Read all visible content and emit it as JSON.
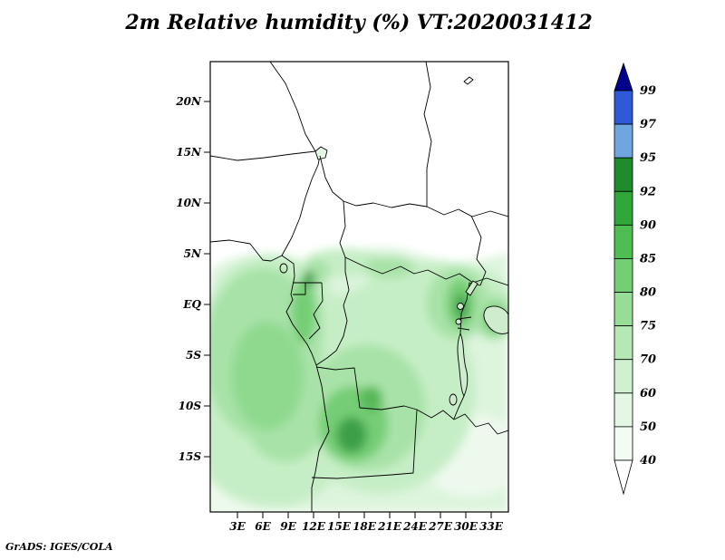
{
  "title": "2m Relative humidity (%) VT:2020031412",
  "credit": "GrADS: IGES/COLA",
  "map": {
    "y_ticks": [
      "20N",
      "15N",
      "10N",
      "5N",
      "EQ",
      "5S",
      "10S",
      "15S"
    ],
    "x_ticks": [
      "3E",
      "6E",
      "9E",
      "12E",
      "15E",
      "18E",
      "21E",
      "24E",
      "27E",
      "30E",
      "33E"
    ]
  },
  "colorbar": {
    "tick_labels": [
      "99",
      "97",
      "95",
      "92",
      "90",
      "85",
      "80",
      "75",
      "70",
      "60",
      "50",
      "40"
    ],
    "colors": [
      "#00008b",
      "#2e59d9",
      "#6fa6e0",
      "#208b2c",
      "#2fa73a",
      "#4fbe52",
      "#74ce74",
      "#97dc97",
      "#b4e8b4",
      "#cff1cf",
      "#e4f7e4",
      "#f3fbf3",
      "#ffffff"
    ]
  },
  "chart_data": {
    "type": "heatmap",
    "title": "2m Relative humidity (%) VT:2020031412",
    "variable": "2m relative humidity",
    "units": "%",
    "valid_time_label": "VT:2020031412",
    "x_ticks": [
      "3E",
      "6E",
      "9E",
      "12E",
      "15E",
      "18E",
      "21E",
      "24E",
      "27E",
      "30E",
      "33E"
    ],
    "y_ticks": [
      "20N",
      "15N",
      "10N",
      "5N",
      "EQ",
      "5S",
      "10S",
      "15S"
    ],
    "lon_range_deg_east": [
      0,
      35
    ],
    "lat_range_deg": [
      -20.4,
      23.9
    ],
    "levels": [
      40,
      50,
      60,
      70,
      75,
      80,
      85,
      90,
      92,
      95,
      97,
      99
    ],
    "palette_top_to_bottom": [
      "#00008b",
      "#2e59d9",
      "#6fa6e0",
      "#208b2c",
      "#2fa73a",
      "#4fbe52",
      "#74ce74",
      "#97dc97",
      "#b4e8b4",
      "#cff1cf",
      "#e4f7e4",
      "#f3fbf3",
      "#ffffff"
    ],
    "legend_position": "right",
    "grid": false,
    "approx_grid": {
      "lons_deg_east": [
        3,
        6,
        9,
        12,
        15,
        18,
        21,
        24,
        27,
        30,
        33
      ],
      "lats": [
        "20N",
        "15N",
        "10N",
        "5N",
        "EQ",
        "5S",
        "10S",
        "15S"
      ],
      "values_percent": [
        [
          35,
          35,
          35,
          35,
          35,
          35,
          35,
          35,
          35,
          35,
          35
        ],
        [
          38,
          38,
          38,
          38,
          38,
          38,
          38,
          38,
          38,
          38,
          38
        ],
        [
          42,
          42,
          45,
          45,
          48,
          50,
          50,
          48,
          45,
          45,
          42
        ],
        [
          75,
          72,
          68,
          60,
          62,
          66,
          68,
          64,
          58,
          55,
          52
        ],
        [
          80,
          80,
          82,
          86,
          84,
          86,
          80,
          76,
          72,
          82,
          86
        ],
        [
          78,
          78,
          77,
          75,
          73,
          76,
          73,
          70,
          68,
          73,
          70
        ],
        [
          75,
          74,
          72,
          70,
          73,
          86,
          80,
          73,
          70,
          68,
          62
        ],
        [
          70,
          70,
          68,
          66,
          71,
          76,
          70,
          62,
          56,
          52,
          50
        ]
      ]
    }
  }
}
